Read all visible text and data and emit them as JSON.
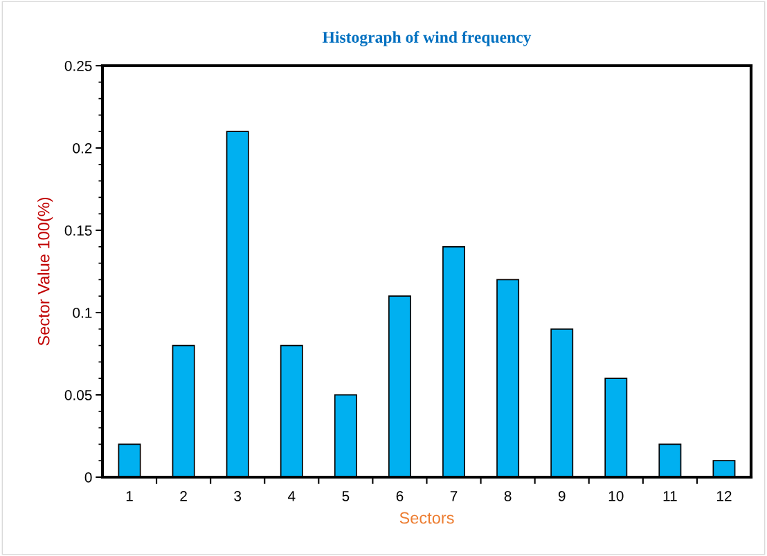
{
  "chart_data": {
    "type": "bar",
    "title": "Histograph of wind frequency",
    "xlabel": "Sectors",
    "ylabel": "Sector Value 100(%)",
    "categories": [
      "1",
      "2",
      "3",
      "4",
      "5",
      "6",
      "7",
      "8",
      "9",
      "10",
      "11",
      "12"
    ],
    "values": [
      0.02,
      0.08,
      0.21,
      0.08,
      0.05,
      0.11,
      0.14,
      0.12,
      0.09,
      0.06,
      0.02,
      0.01
    ],
    "color": "#00b0f0",
    "ylim": [
      0,
      0.25
    ],
    "yticks": [
      0,
      0.05,
      0.1,
      0.15,
      0.2,
      0.25
    ],
    "grid": false,
    "legend": false
  }
}
